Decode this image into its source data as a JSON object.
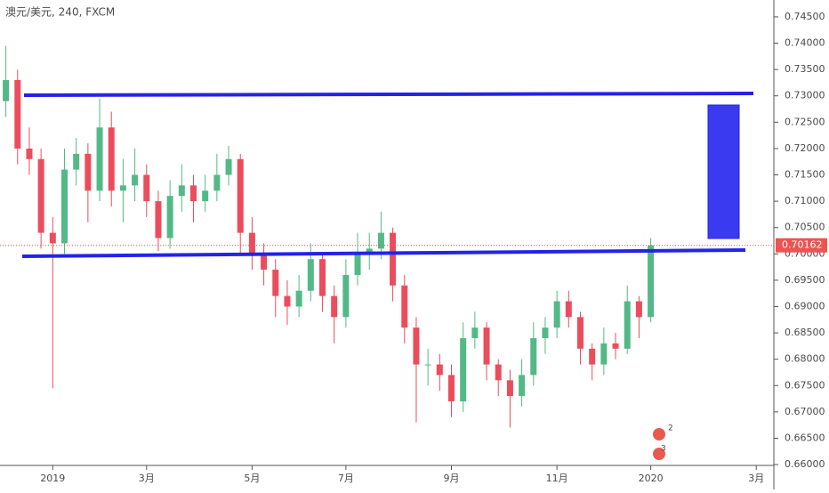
{
  "chart_data": {
    "type": "candlestick",
    "title": "澳元/美元, 240, FXCM",
    "categories": [
      null,
      null,
      null,
      null,
      "2019",
      null,
      null,
      null,
      null,
      null,
      null,
      null,
      "3月",
      null,
      null,
      null,
      null,
      null,
      null,
      null,
      null,
      "5月",
      null,
      null,
      null,
      null,
      null,
      null,
      null,
      "7月",
      null,
      null,
      null,
      null,
      null,
      null,
      null,
      null,
      "9月",
      null,
      null,
      null,
      null,
      null,
      null,
      null,
      null,
      "11月",
      null,
      null,
      null,
      null,
      null,
      null,
      null,
      "2020",
      null,
      null,
      null,
      null,
      null,
      null,
      null,
      null,
      "3月",
      null
    ],
    "open": [
      0.729,
      0.733,
      0.72,
      0.718,
      0.704,
      0.702,
      0.716,
      0.719,
      0.712,
      0.724,
      0.712,
      0.713,
      0.715,
      0.71,
      0.703,
      0.711,
      0.713,
      0.71,
      0.712,
      0.715,
      0.718,
      0.704,
      0.7,
      0.697,
      0.692,
      0.69,
      0.693,
      0.699,
      0.692,
      0.688,
      0.696,
      0.7,
      0.701,
      0.704,
      0.694,
      0.686,
      0.679,
      0.679,
      0.677,
      0.672,
      0.684,
      0.686,
      0.679,
      0.676,
      0.673,
      0.677,
      0.684,
      0.686,
      0.691,
      0.688,
      0.682,
      0.679,
      0.683,
      0.682,
      0.691,
      0.688,
      null,
      null,
      null,
      null,
      null,
      null,
      null,
      null,
      null,
      null
    ],
    "high": [
      0.7395,
      0.735,
      0.724,
      0.72,
      0.707,
      0.72,
      0.722,
      0.721,
      0.7295,
      0.727,
      0.718,
      0.72,
      0.717,
      0.712,
      0.714,
      0.717,
      0.715,
      0.715,
      0.719,
      0.7205,
      0.719,
      0.707,
      0.702,
      0.699,
      0.695,
      0.696,
      0.702,
      0.7,
      0.694,
      0.699,
      0.704,
      0.704,
      0.708,
      0.705,
      0.696,
      0.688,
      0.682,
      0.681,
      0.679,
      0.687,
      0.689,
      0.687,
      0.68,
      0.678,
      0.68,
      0.687,
      0.688,
      0.693,
      0.693,
      0.689,
      0.683,
      0.686,
      0.685,
      0.694,
      0.692,
      0.703,
      null,
      null,
      null,
      null,
      null,
      null,
      null,
      null,
      null,
      null
    ],
    "low": [
      0.726,
      0.717,
      0.715,
      0.701,
      0.6745,
      0.7,
      0.713,
      0.706,
      0.71,
      0.709,
      0.706,
      0.71,
      0.707,
      0.7005,
      0.701,
      0.708,
      0.706,
      0.708,
      0.71,
      0.713,
      0.7,
      0.697,
      0.694,
      0.688,
      0.6865,
      0.688,
      0.691,
      0.689,
      0.683,
      0.686,
      0.694,
      0.697,
      0.699,
      0.691,
      0.683,
      0.668,
      0.675,
      0.674,
      0.669,
      0.67,
      0.682,
      0.676,
      0.673,
      0.667,
      0.671,
      0.675,
      0.681,
      0.684,
      0.686,
      0.679,
      0.676,
      0.677,
      0.68,
      0.681,
      0.684,
      0.687,
      null,
      null,
      null,
      null,
      null,
      null,
      null,
      null,
      null,
      null
    ],
    "close": [
      0.733,
      0.72,
      0.718,
      0.704,
      0.702,
      0.716,
      0.719,
      0.712,
      0.724,
      0.712,
      0.713,
      0.715,
      0.71,
      0.703,
      0.711,
      0.713,
      0.71,
      0.712,
      0.715,
      0.718,
      0.704,
      0.7,
      0.697,
      0.692,
      0.69,
      0.693,
      0.699,
      0.692,
      0.688,
      0.696,
      0.7,
      0.701,
      0.704,
      0.694,
      0.686,
      0.679,
      0.679,
      0.677,
      0.672,
      0.684,
      0.686,
      0.679,
      0.676,
      0.673,
      0.677,
      0.684,
      0.686,
      0.691,
      0.688,
      0.682,
      0.679,
      0.683,
      0.682,
      0.691,
      0.688,
      0.7016,
      null,
      null,
      null,
      null,
      null,
      null,
      null,
      null,
      null,
      null
    ],
    "up_color": "#53b987",
    "down_color": "#eb4d5c",
    "ylim": [
      0.6595,
      0.7482
    ],
    "yticks": [
      {
        "value": 0.66,
        "label": "0.66000"
      },
      {
        "value": 0.665,
        "label": "0.66500"
      },
      {
        "value": 0.67,
        "label": "0.67000"
      },
      {
        "value": 0.675,
        "label": "0.67500"
      },
      {
        "value": 0.68,
        "label": "0.68000"
      },
      {
        "value": 0.685,
        "label": "0.68500"
      },
      {
        "value": 0.69,
        "label": "0.69000"
      },
      {
        "value": 0.695,
        "label": "0.69500"
      },
      {
        "value": 0.7,
        "label": "0.70000"
      },
      {
        "value": 0.705,
        "label": "0.70500"
      },
      {
        "value": 0.71,
        "label": "0.71000"
      },
      {
        "value": 0.715,
        "label": "0.71500"
      },
      {
        "value": 0.72,
        "label": "0.72000"
      },
      {
        "value": 0.725,
        "label": "0.72500"
      },
      {
        "value": 0.73,
        "label": "0.73000"
      },
      {
        "value": 0.735,
        "label": "0.73500"
      },
      {
        "value": 0.74,
        "label": "0.74000"
      },
      {
        "value": 0.745,
        "label": "0.74500"
      }
    ],
    "last_price": 0.70162,
    "last_price_color": "#ef5350",
    "events": [
      "2",
      "3"
    ]
  }
}
